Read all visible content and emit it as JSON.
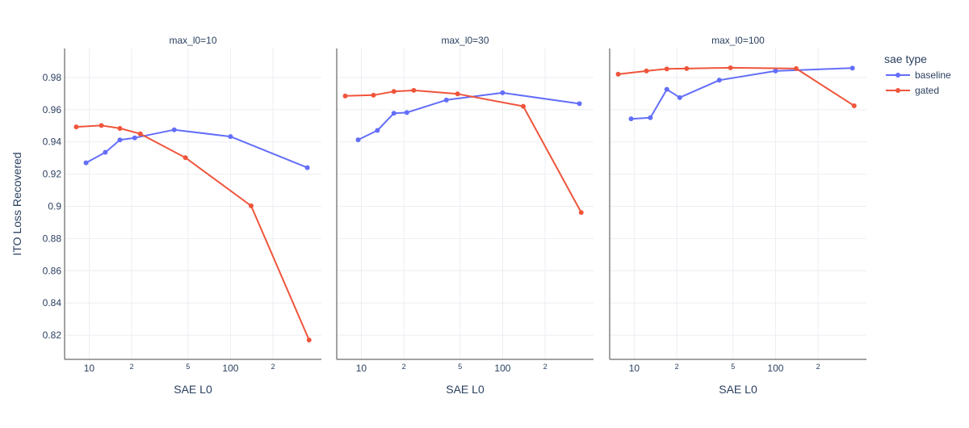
{
  "chart_data": {
    "type": "line",
    "xscale": "log",
    "x_tick_labels": [
      "10",
      "2",
      "5",
      "100",
      "2"
    ],
    "y_tick_labels": [
      "0.82",
      "0.84",
      "0.86",
      "0.88",
      "0.9",
      "0.92",
      "0.94",
      "0.96",
      "0.98"
    ],
    "xlabel": "SAE L0",
    "ylabel": "ITO Loss Recovered",
    "ylim": [
      0.805,
      0.998
    ],
    "xlim": [
      6.7,
      440
    ],
    "legend": {
      "title": "sae type",
      "position": "right"
    },
    "grid": true,
    "facets": [
      {
        "title": "max_l0=10",
        "series": [
          {
            "name": "baseline",
            "color": "#636efa",
            "x": [
              9.5,
              13,
              16.5,
              21,
              40,
              100,
              350
            ],
            "y": [
              0.927,
              0.9335,
              0.9412,
              0.9425,
              0.9475,
              0.9433,
              0.924
            ]
          },
          {
            "name": "gated",
            "color": "#ef553b",
            "x": [
              8.1,
              12.2,
              16.5,
              23,
              48,
              140,
              360
            ],
            "y": [
              0.9493,
              0.9502,
              0.9484,
              0.945,
              0.9302,
              0.9003,
              0.817
            ]
          }
        ]
      },
      {
        "title": "max_l0=30",
        "series": [
          {
            "name": "baseline",
            "color": "#636efa",
            "x": [
              9.5,
              13,
              17,
              21,
              40,
              100,
              350
            ],
            "y": [
              0.9413,
              0.9471,
              0.9578,
              0.9582,
              0.966,
              0.9705,
              0.9637
            ]
          },
          {
            "name": "gated",
            "color": "#ef553b",
            "x": [
              7.7,
              12.2,
              17,
              23.5,
              48,
              140,
              360
            ],
            "y": [
              0.9685,
              0.969,
              0.9713,
              0.972,
              0.9698,
              0.9621,
              0.8962
            ]
          }
        ]
      },
      {
        "title": "max_l0=100",
        "series": [
          {
            "name": "baseline",
            "color": "#636efa",
            "x": [
              9.5,
              13,
              17,
              21,
              40,
              100,
              350
            ],
            "y": [
              0.9543,
              0.955,
              0.9726,
              0.9675,
              0.9783,
              0.984,
              0.9858
            ]
          },
          {
            "name": "gated",
            "color": "#ef553b",
            "x": [
              7.7,
              12.2,
              17,
              23.5,
              48,
              140,
              360
            ],
            "y": [
              0.982,
              0.984,
              0.9853,
              0.9855,
              0.986,
              0.9855,
              0.9624
            ]
          }
        ]
      }
    ]
  }
}
